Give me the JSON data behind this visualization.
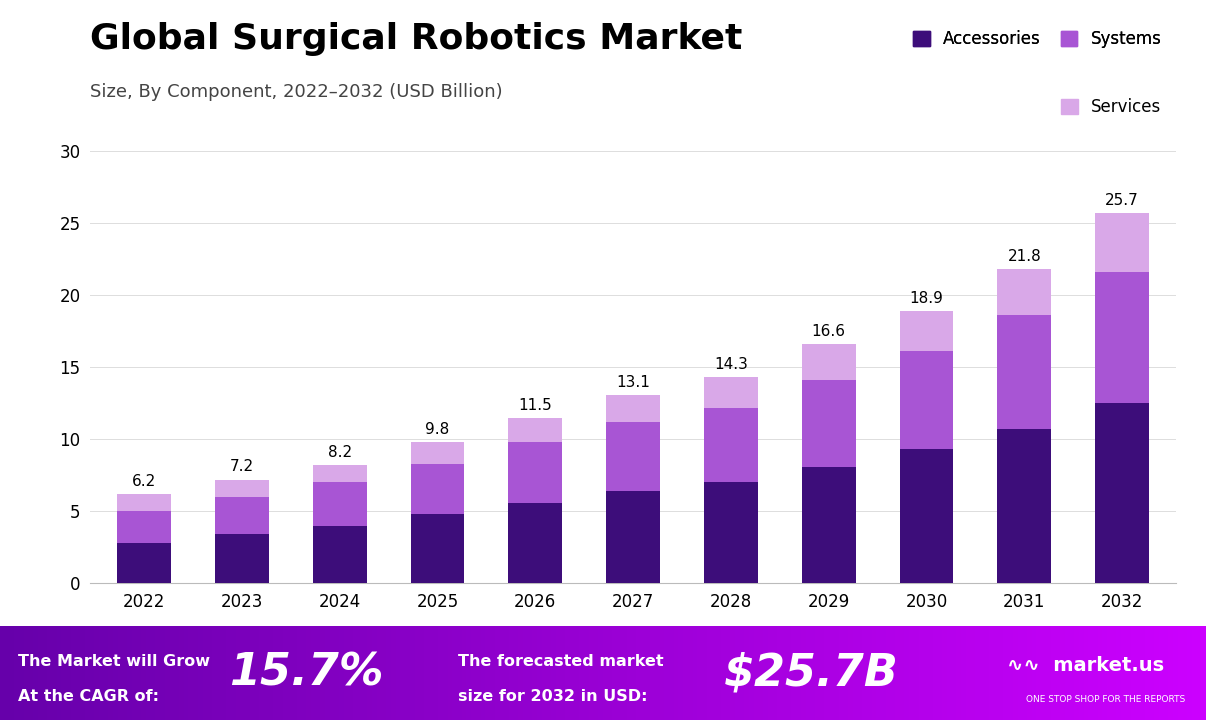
{
  "title": "Global Surgical Robotics Market",
  "subtitle": "Size, By Component, 2022–2032 (USD Billion)",
  "years": [
    2022,
    2023,
    2024,
    2025,
    2026,
    2027,
    2028,
    2029,
    2030,
    2031,
    2032
  ],
  "totals": [
    6.2,
    7.2,
    8.2,
    9.8,
    11.5,
    13.1,
    14.3,
    16.6,
    18.9,
    21.8,
    25.7
  ],
  "accessories": [
    2.8,
    3.4,
    4.0,
    4.8,
    5.6,
    6.4,
    7.0,
    8.1,
    9.3,
    10.7,
    12.5
  ],
  "systems": [
    2.2,
    2.6,
    3.0,
    3.5,
    4.2,
    4.8,
    5.2,
    6.0,
    6.8,
    7.9,
    9.1
  ],
  "services_color": "#d9a8e8",
  "systems_color": "#a855d4",
  "accessories_color": "#3d0d7a",
  "ylim": [
    0,
    30
  ],
  "yticks": [
    0,
    5,
    10,
    15,
    20,
    25,
    30
  ],
  "bar_width": 0.55,
  "footer_bg_left": "#7700bb",
  "footer_bg_right": "#cc00ee",
  "title_fontsize": 26,
  "subtitle_fontsize": 13,
  "tick_fontsize": 12,
  "annotation_fontsize": 11
}
